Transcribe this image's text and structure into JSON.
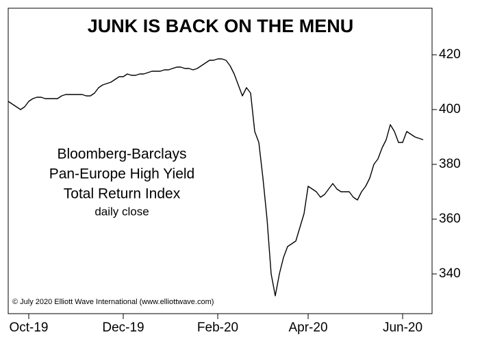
{
  "chart_data": {
    "type": "line",
    "title": "JUNK IS BACK ON THE MENU",
    "annotation": [
      "Bloomberg-Barclays",
      "Pan-Europe High Yield",
      "Total Return Index",
      "daily close"
    ],
    "credit": "© July 2020 Elliott Wave International (www.elliottwave.com)",
    "categories": [
      null,
      null,
      null,
      null,
      null,
      "Oct-19",
      null,
      null,
      null,
      null,
      null,
      null,
      null,
      null,
      null,
      null,
      null,
      null,
      null,
      null,
      null,
      null,
      null,
      null,
      null,
      null,
      null,
      null,
      "Dec-19",
      null,
      null,
      null,
      null,
      null,
      null,
      null,
      null,
      null,
      null,
      null,
      null,
      null,
      null,
      null,
      null,
      null,
      null,
      null,
      null,
      null,
      null,
      "Feb-20",
      null,
      null,
      null,
      null,
      null,
      null,
      null,
      null,
      null,
      null,
      null,
      null,
      null,
      null,
      null,
      null,
      null,
      null,
      null,
      null,
      null,
      "Apr-20",
      null,
      null,
      null,
      null,
      null,
      null,
      null,
      null,
      null,
      null,
      null,
      null,
      null,
      null,
      null,
      null,
      null,
      null,
      null,
      null,
      null,
      null,
      "Jun-20",
      null,
      null,
      null,
      null,
      null
    ],
    "series": [
      {
        "color": "#000000",
        "values": [
          403,
          402,
          401,
          400,
          401,
          403,
          404,
          404.5,
          404.5,
          404,
          404,
          404,
          404,
          405,
          405.5,
          405.5,
          405.5,
          405.5,
          405.5,
          405,
          405,
          406,
          408,
          409,
          409.5,
          410,
          411,
          412,
          412,
          413,
          412.5,
          412.5,
          413,
          413,
          413.5,
          414,
          414,
          414,
          414.5,
          414.5,
          415,
          415.5,
          415.5,
          415,
          415,
          414.5,
          415,
          416,
          417,
          418,
          418,
          418.5,
          418.5,
          418,
          416,
          413,
          409,
          405,
          408,
          406,
          392,
          388,
          375,
          360,
          340,
          332,
          340,
          346,
          350,
          351,
          352,
          357,
          362,
          372,
          371,
          370,
          368,
          369,
          371,
          373,
          371,
          370,
          370,
          370,
          368,
          367,
          370,
          372,
          375,
          380,
          382,
          386,
          389,
          394.5,
          392,
          388,
          388,
          392,
          391,
          390,
          389.5,
          389
        ]
      }
    ],
    "ylim": [
      325.5,
      437
    ],
    "yticks": [
      340,
      360,
      380,
      400,
      420
    ]
  }
}
